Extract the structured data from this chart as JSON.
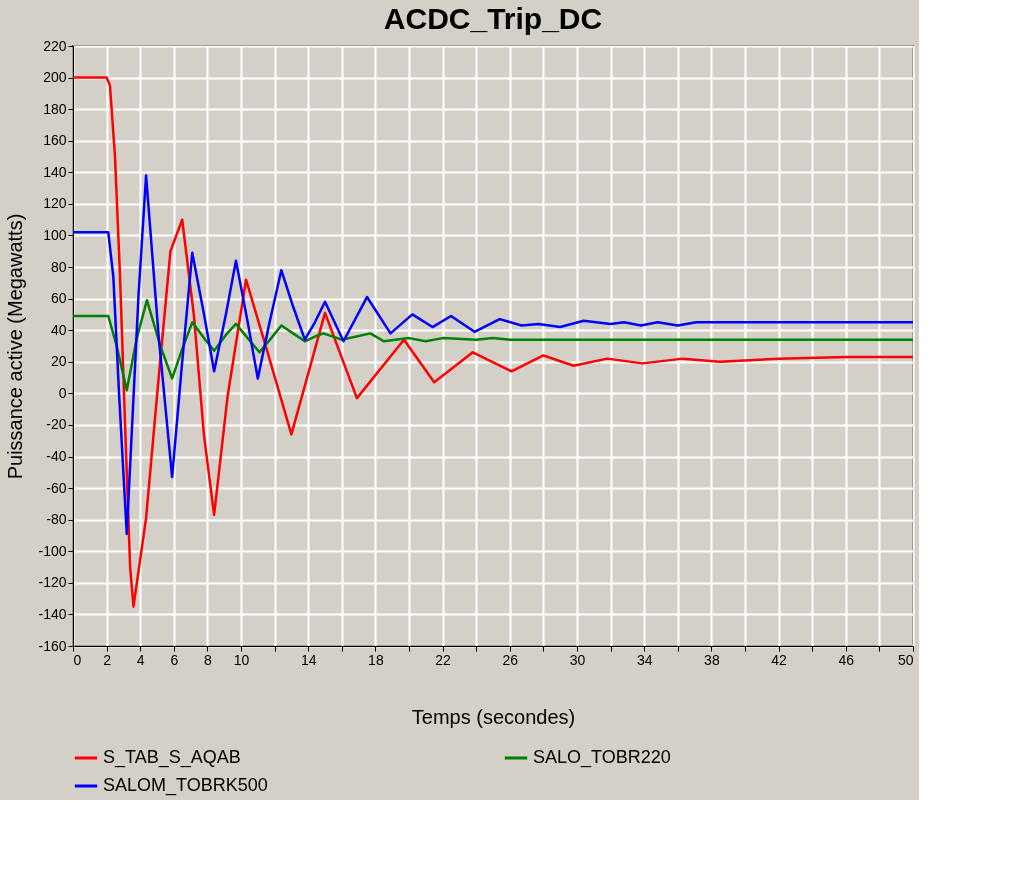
{
  "chart_data": {
    "type": "line",
    "title": "ACDC_Trip_DC",
    "xlabel": "Temps (secondes)",
    "ylabel": "Puissance active (Megawatts)",
    "xlim": [
      0,
      50
    ],
    "ylim": [
      -160,
      220
    ],
    "xticks": [
      0,
      2,
      4,
      6,
      8,
      10,
      {
        "value": 12,
        "label": null
      },
      14,
      {
        "value": 16,
        "label": null
      },
      18,
      {
        "value": 20,
        "label": null
      },
      22,
      {
        "value": 24,
        "label": null
      },
      26,
      {
        "value": 28,
        "label": null
      },
      30,
      {
        "value": 32,
        "label": null
      },
      34,
      {
        "value": 36,
        "label": null
      },
      38,
      {
        "value": 40,
        "label": null
      },
      42,
      {
        "value": 44,
        "label": null
      },
      46,
      {
        "value": 48,
        "label": null
      },
      50
    ],
    "yticks": [
      -160,
      -140,
      -120,
      -100,
      -80,
      -60,
      -40,
      -20,
      0,
      20,
      40,
      60,
      80,
      100,
      120,
      140,
      160,
      180,
      200,
      220
    ],
    "grid": true,
    "legend": "bottom",
    "line_style": "solid",
    "marker": "none",
    "series": [
      {
        "name": "S_TAB_S_AQAB",
        "color": "#ff0000",
        "x": [
          0,
          2.0,
          2.2,
          2.5,
          2.8,
          3.1,
          3.4,
          3.6,
          4.35,
          5.1,
          5.8,
          6.5,
          7.2,
          7.8,
          8.4,
          9.2,
          10.3,
          11.5,
          13.0,
          15.0,
          16.9,
          19.7,
          21.5,
          23.8,
          26.1,
          28.0,
          29.8,
          31.8,
          33.9,
          36.3,
          38.5,
          42,
          46,
          50
        ],
        "values": [
          200,
          200,
          195,
          150,
          74,
          -20,
          -110,
          -135,
          -79,
          10,
          90,
          110,
          49,
          -27,
          -77,
          -2,
          72,
          29,
          -26,
          51,
          -3,
          34,
          7,
          26,
          14,
          24,
          17.5,
          22,
          19,
          22,
          20,
          22,
          23,
          23
        ]
      },
      {
        "name": "SALO_TOBR220",
        "color": "#008000",
        "x": [
          0,
          2.1,
          2.6,
          3.2,
          3.8,
          4.4,
          5.2,
          5.9,
          6.5,
          7.1,
          7.8,
          8.4,
          9.1,
          9.7,
          10.4,
          11.1,
          11.8,
          12.4,
          13.1,
          13.8,
          14.4,
          14.9,
          16.0,
          17.7,
          18.5,
          20,
          21,
          22,
          24,
          25,
          26,
          50
        ],
        "values": [
          49,
          49,
          30,
          2,
          35,
          59,
          30,
          9.5,
          28,
          45,
          35,
          27,
          37,
          44,
          35,
          26,
          35,
          43,
          38,
          33,
          36,
          38,
          34,
          38,
          33,
          35,
          33,
          35,
          34,
          35,
          34,
          34
        ]
      },
      {
        "name": "SALOM_TOBRK500",
        "color": "#0000ff",
        "x": [
          0,
          2.1,
          2.4,
          2.75,
          3.2,
          3.9,
          4.35,
          5.1,
          5.9,
          6.5,
          7.1,
          7.8,
          8.4,
          9.1,
          9.7,
          10.4,
          11.0,
          11.7,
          12.4,
          13.1,
          13.8,
          14.4,
          15.0,
          16.1,
          17.5,
          18.9,
          20.2,
          21.4,
          22.5,
          23.9,
          25.4,
          26.7,
          27.7,
          29,
          30.4,
          32,
          32.8,
          33.8,
          34.8,
          36,
          37.1,
          50
        ],
        "values": [
          102,
          102,
          74,
          -2,
          -89,
          62,
          138,
          36,
          -53,
          20,
          89,
          50,
          14,
          50,
          84,
          45,
          9.4,
          45,
          78,
          55,
          34,
          45,
          58,
          33,
          61,
          38,
          50,
          42,
          49,
          39,
          47,
          43,
          44,
          42,
          46,
          44,
          45,
          43,
          45,
          43,
          45,
          45
        ]
      }
    ]
  }
}
